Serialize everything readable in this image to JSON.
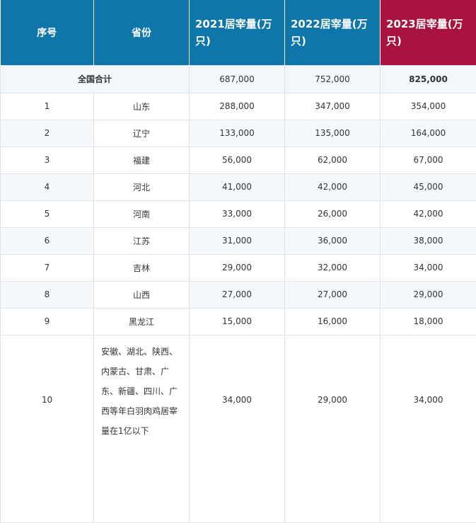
{
  "header": {
    "col_index": "序号",
    "col_province": "省份",
    "col_2021": "2021居宰量(万只)",
    "col_2022": "2022居宰量(万只)",
    "col_2023": "2023居宰量(万只)"
  },
  "total": {
    "label": "全国合计",
    "v2021": "687,000",
    "v2022": "752,000",
    "v2023": "825,000"
  },
  "rows": [
    {
      "index": "1",
      "province": "山东",
      "v2021": "288,000",
      "v2022": "347,000",
      "v2023": "354,000"
    },
    {
      "index": "2",
      "province": "辽宁",
      "v2021": "133,000",
      "v2022": "135,000",
      "v2023": "164,000"
    },
    {
      "index": "3",
      "province": "福建",
      "v2021": "56,000",
      "v2022": "62,000",
      "v2023": "67,000"
    },
    {
      "index": "4",
      "province": "河北",
      "v2021": "41,000",
      "v2022": "42,000",
      "v2023": "45,000"
    },
    {
      "index": "5",
      "province": "河南",
      "v2021": "33,000",
      "v2022": "26,000",
      "v2023": "42,000"
    },
    {
      "index": "6",
      "province": "江苏",
      "v2021": "31,000",
      "v2022": "36,000",
      "v2023": "38,000"
    },
    {
      "index": "7",
      "province": "吉林",
      "v2021": "29,000",
      "v2022": "32,000",
      "v2023": "34,000"
    },
    {
      "index": "8",
      "province": "山西",
      "v2021": "27,000",
      "v2022": "27,000",
      "v2023": "29,000"
    },
    {
      "index": "9",
      "province": "黑龙江",
      "v2021": "15,000",
      "v2022": "16,000",
      "v2023": "18,000"
    },
    {
      "index": "10",
      "province": "安徽、湖北、陕西、内蒙古、甘肃、广东、新疆、四川、广西等年白羽肉鸡居宰量在1亿以下",
      "v2021": "34,000",
      "v2022": "29,000",
      "v2023": "34,000"
    }
  ]
}
